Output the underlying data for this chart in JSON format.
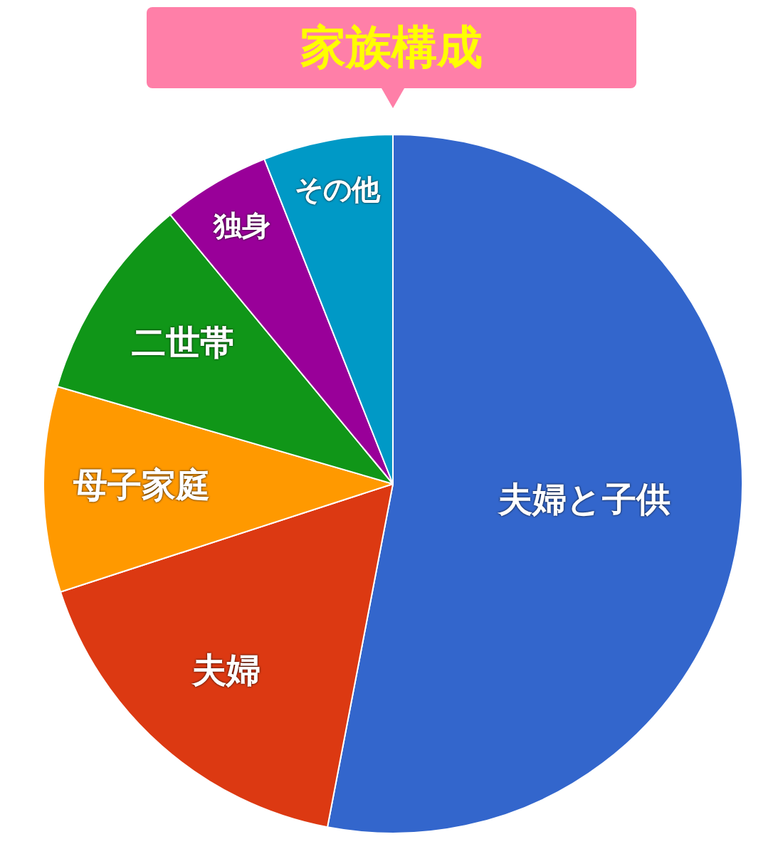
{
  "chart_data": {
    "type": "pie",
    "title": "家族構成",
    "categories": [
      "夫婦と子供",
      "夫婦",
      "母子家庭",
      "二世帯",
      "独身",
      "その他"
    ],
    "values": [
      53,
      17,
      9.5,
      9.5,
      5,
      6
    ],
    "colors": [
      "#3366cc",
      "#dc3912",
      "#ff9900",
      "#109618",
      "#990099",
      "#0099c6"
    ],
    "legend": false
  }
}
